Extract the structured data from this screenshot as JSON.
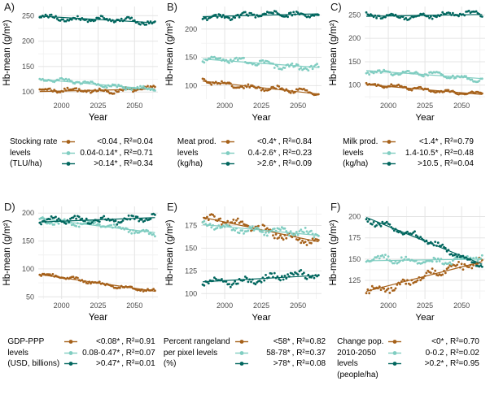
{
  "figure": {
    "background": "#ffffff",
    "ylabel": "Hb-mean (g/m²)",
    "xlabel": "Year",
    "r2_symbol": "R²",
    "points_per_series": 80,
    "axis_text_color": "#4d4d4d",
    "grid_major_color": "#e4e4e4",
    "grid_minor_color": "#f2f2f2",
    "palette": {
      "low": "#a6611a",
      "mid": "#80cdc1",
      "high": "#01665e"
    }
  },
  "chart_data": [
    {
      "id": "A",
      "label": "A)",
      "type": "scatter",
      "xlabel": "Year",
      "ylabel": "Hb-mean (g/m²)",
      "x_range": [
        1984,
        2066
      ],
      "x_ticks": [
        2000,
        2025,
        2050
      ],
      "ylim": [
        86,
        268
      ],
      "y_ticks": [
        100,
        150,
        200,
        250
      ],
      "legend_title_lines": [
        "Stocking rate",
        "levels",
        "(TLU/ha)"
      ],
      "series": [
        {
          "name": "<0.04",
          "r2": "0.04",
          "color_key": "low",
          "trend": [
            101,
            106
          ],
          "spread": 6.5
        },
        {
          "name": "0.04-0.14*",
          "r2": "0.71",
          "color_key": "mid",
          "trend": [
            125,
            105
          ],
          "spread": 5
        },
        {
          "name": ">0.14*",
          "r2": "0.34",
          "color_key": "high",
          "trend": [
            249,
            236
          ],
          "spread": 7
        }
      ]
    },
    {
      "id": "B",
      "label": "B)",
      "type": "scatter",
      "xlabel": "Year",
      "ylabel": "Hb-mean (g/m²)",
      "x_range": [
        1984,
        2066
      ],
      "x_ticks": [
        2000,
        2025,
        2050
      ],
      "ylim": [
        76,
        240
      ],
      "y_ticks": [
        100,
        150,
        200
      ],
      "legend_title_lines": [
        "Meat prod.",
        "levels",
        "(kg/ha)"
      ],
      "series": [
        {
          "name": "<0.4*",
          "r2": "0.84",
          "color_key": "low",
          "trend": [
            108,
            85
          ],
          "spread": 5.5
        },
        {
          "name": "0.4-2.6*",
          "r2": "0.23",
          "color_key": "mid",
          "trend": [
            147,
            132
          ],
          "spread": 7
        },
        {
          "name": ">2.6*",
          "r2": "0.09",
          "color_key": "high",
          "trend": [
            222,
            227
          ],
          "spread": 6
        }
      ]
    },
    {
      "id": "C",
      "label": "C)",
      "type": "scatter",
      "xlabel": "Year",
      "ylabel": "Hb-mean (g/m²)",
      "x_range": [
        1984,
        2066
      ],
      "x_ticks": [
        2000,
        2025,
        2050
      ],
      "ylim": [
        70,
        268
      ],
      "y_ticks": [
        100,
        150,
        200,
        250
      ],
      "legend_title_lines": [
        "Milk prod.",
        "levels",
        "(kg/ha)"
      ],
      "series": [
        {
          "name": "<1.4*",
          "r2": "0.79",
          "color_key": "low",
          "trend": [
            101,
            80
          ],
          "spread": 5
        },
        {
          "name": "1.4-10.5*",
          "r2": "0.48",
          "color_key": "mid",
          "trend": [
            131,
            114
          ],
          "spread": 6.5
        },
        {
          "name": ">10.5",
          "r2": "0.04",
          "color_key": "high",
          "trend": [
            247,
            251
          ],
          "spread": 7
        }
      ]
    },
    {
      "id": "D",
      "label": "D)",
      "type": "scatter",
      "xlabel": "Year",
      "ylabel": "Hb-mean (g/m²)",
      "x_range": [
        1984,
        2066
      ],
      "x_ticks": [
        2000,
        2025,
        2050
      ],
      "ylim": [
        46,
        212
      ],
      "y_ticks": [
        50,
        100,
        150,
        200
      ],
      "legend_title_lines": [
        "GDP-PPP",
        "levels",
        "(USD, billions)"
      ],
      "series": [
        {
          "name": "<0.08*",
          "r2": "0.91",
          "color_key": "low",
          "trend": [
            90,
            60
          ],
          "spread": 4
        },
        {
          "name": "0.08-0.47*",
          "r2": "0.07",
          "color_key": "mid",
          "trend": [
            190,
            165
          ],
          "spread": 7
        },
        {
          "name": ">0.47*",
          "r2": "0.01",
          "color_key": "high",
          "trend": [
            184,
            192
          ],
          "spread": 8
        }
      ]
    },
    {
      "id": "E",
      "label": "E)",
      "type": "scatter",
      "xlabel": "Year",
      "ylabel": "Hb-mean (g/m²)",
      "x_range": [
        1984,
        2066
      ],
      "x_ticks": [
        2000,
        2025,
        2050
      ],
      "ylim": [
        94,
        196
      ],
      "y_ticks": [
        100,
        125,
        150,
        175
      ],
      "legend_title_lines": [
        "Percent rangeland",
        "per pixel levels",
        "(%)"
      ],
      "series": [
        {
          "name": "<58*",
          "r2": "0.82",
          "color_key": "low",
          "trend": [
            184,
            157
          ],
          "spread": 6
        },
        {
          "name": "58-78*",
          "r2": "0.37",
          "color_key": "mid",
          "trend": [
            176,
            164
          ],
          "spread": 5.5
        },
        {
          "name": ">78*",
          "r2": "0.08",
          "color_key": "high",
          "trend": [
            113,
            120
          ],
          "spread": 6.5
        }
      ]
    },
    {
      "id": "F",
      "label": "F)",
      "type": "scatter",
      "xlabel": "Year",
      "ylabel": "Hb-mean (g/m²)",
      "x_range": [
        1984,
        2066
      ],
      "x_ticks": [
        2000,
        2025,
        2050
      ],
      "ylim": [
        103,
        212
      ],
      "y_ticks": [
        125,
        150,
        175,
        200
      ],
      "legend_title_lines": [
        "Change pop.",
        "2010-2050",
        "levels",
        "(people/ha)"
      ],
      "series": [
        {
          "name": "<0*",
          "r2": "0.70",
          "color_key": "low",
          "trend": [
            112,
            147
          ],
          "spread": 7
        },
        {
          "name": "0-0.2",
          "r2": "0.02",
          "color_key": "mid",
          "trend": [
            148,
            150
          ],
          "spread": 6
        },
        {
          "name": ">0.2*",
          "r2": "0.95",
          "color_key": "high",
          "trend": [
            199,
            144
          ],
          "spread": 5
        }
      ]
    }
  ]
}
